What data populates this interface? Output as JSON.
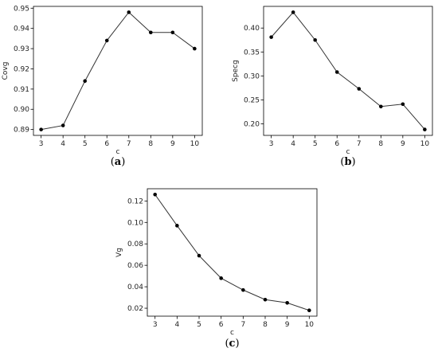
{
  "chart_data": [
    {
      "type": "line",
      "caption": "(a)",
      "caption_letter": "a",
      "xlabel": "c",
      "ylabel": "Covg",
      "x": [
        3,
        4,
        5,
        6,
        7,
        8,
        9,
        10
      ],
      "values": [
        0.89,
        0.892,
        0.914,
        0.934,
        0.948,
        0.938,
        0.938,
        0.93
      ],
      "xticks": [
        3,
        4,
        5,
        6,
        7,
        8,
        9,
        10
      ],
      "yticks": [
        0.89,
        0.9,
        0.91,
        0.92,
        0.93,
        0.94,
        0.95
      ],
      "ytick_labels": [
        "0.89",
        "0.90",
        "0.91",
        "0.92",
        "0.93",
        "0.94",
        "0.95"
      ],
      "xlim": [
        2.65,
        10.35
      ],
      "ylim": [
        0.8871,
        0.9509
      ],
      "grid": false,
      "color": "#000000"
    },
    {
      "type": "line",
      "caption": "(b)",
      "caption_letter": "b",
      "xlabel": "c",
      "ylabel": "Specg",
      "x": [
        3,
        4,
        5,
        6,
        7,
        8,
        9,
        10
      ],
      "values": [
        0.381,
        0.433,
        0.375,
        0.308,
        0.273,
        0.236,
        0.241,
        0.188
      ],
      "xticks": [
        3,
        4,
        5,
        6,
        7,
        8,
        9,
        10
      ],
      "yticks": [
        0.2,
        0.25,
        0.3,
        0.35,
        0.4
      ],
      "ytick_labels": [
        "0.20",
        "0.25",
        "0.30",
        "0.35",
        "0.40"
      ],
      "xlim": [
        2.65,
        10.35
      ],
      "ylim": [
        0.1757,
        0.4453
      ],
      "grid": false,
      "color": "#000000"
    },
    {
      "type": "line",
      "caption": "(c)",
      "caption_letter": "c",
      "xlabel": "c",
      "ylabel": "Vg",
      "x": [
        3,
        4,
        5,
        6,
        7,
        8,
        9,
        10
      ],
      "values": [
        0.126,
        0.097,
        0.069,
        0.048,
        0.037,
        0.028,
        0.025,
        0.018
      ],
      "xticks": [
        3,
        4,
        5,
        6,
        7,
        8,
        9,
        10
      ],
      "yticks": [
        0.02,
        0.04,
        0.06,
        0.08,
        0.1,
        0.12
      ],
      "ytick_labels": [
        "0.02",
        "0.04",
        "0.06",
        "0.08",
        "0.10",
        "0.12"
      ],
      "xlim": [
        2.65,
        10.35
      ],
      "ylim": [
        0.0126,
        0.1314
      ],
      "grid": false,
      "color": "#000000"
    }
  ]
}
